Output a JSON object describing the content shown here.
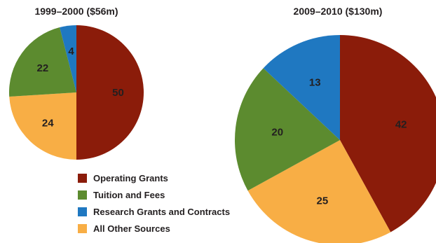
{
  "chart_data": [
    {
      "type": "pie",
      "title": "1999–2000 ($56m)",
      "categories": [
        "Operating Grants",
        "Tuition and Fees",
        "Research Grants and Contracts",
        "All Other Sources"
      ],
      "values": [
        50,
        22,
        4,
        24
      ],
      "start_angle_deg": 0,
      "direction": "clockwise",
      "slice_order": [
        "Operating Grants",
        "All Other Sources",
        "Tuition and Fees",
        "Research Grants and Contracts"
      ]
    },
    {
      "type": "pie",
      "title": "2009–2010 ($130m)",
      "categories": [
        "Operating Grants",
        "Tuition and Fees",
        "Research Grants and Contracts",
        "All Other Sources"
      ],
      "values": [
        42,
        20,
        13,
        25
      ],
      "start_angle_deg": 0,
      "direction": "clockwise",
      "slice_order": [
        "Operating Grants",
        "All Other Sources",
        "Tuition and Fees",
        "Research Grants and Contracts"
      ]
    }
  ],
  "legend": [
    {
      "label": "Operating Grants",
      "color": "#8b1c0a"
    },
    {
      "label": "Tuition and Fees",
      "color": "#5c8b2f"
    },
    {
      "label": "Research Grants and Contracts",
      "color": "#1f78c1"
    },
    {
      "label": "All Other Sources",
      "color": "#f8ae45"
    }
  ]
}
